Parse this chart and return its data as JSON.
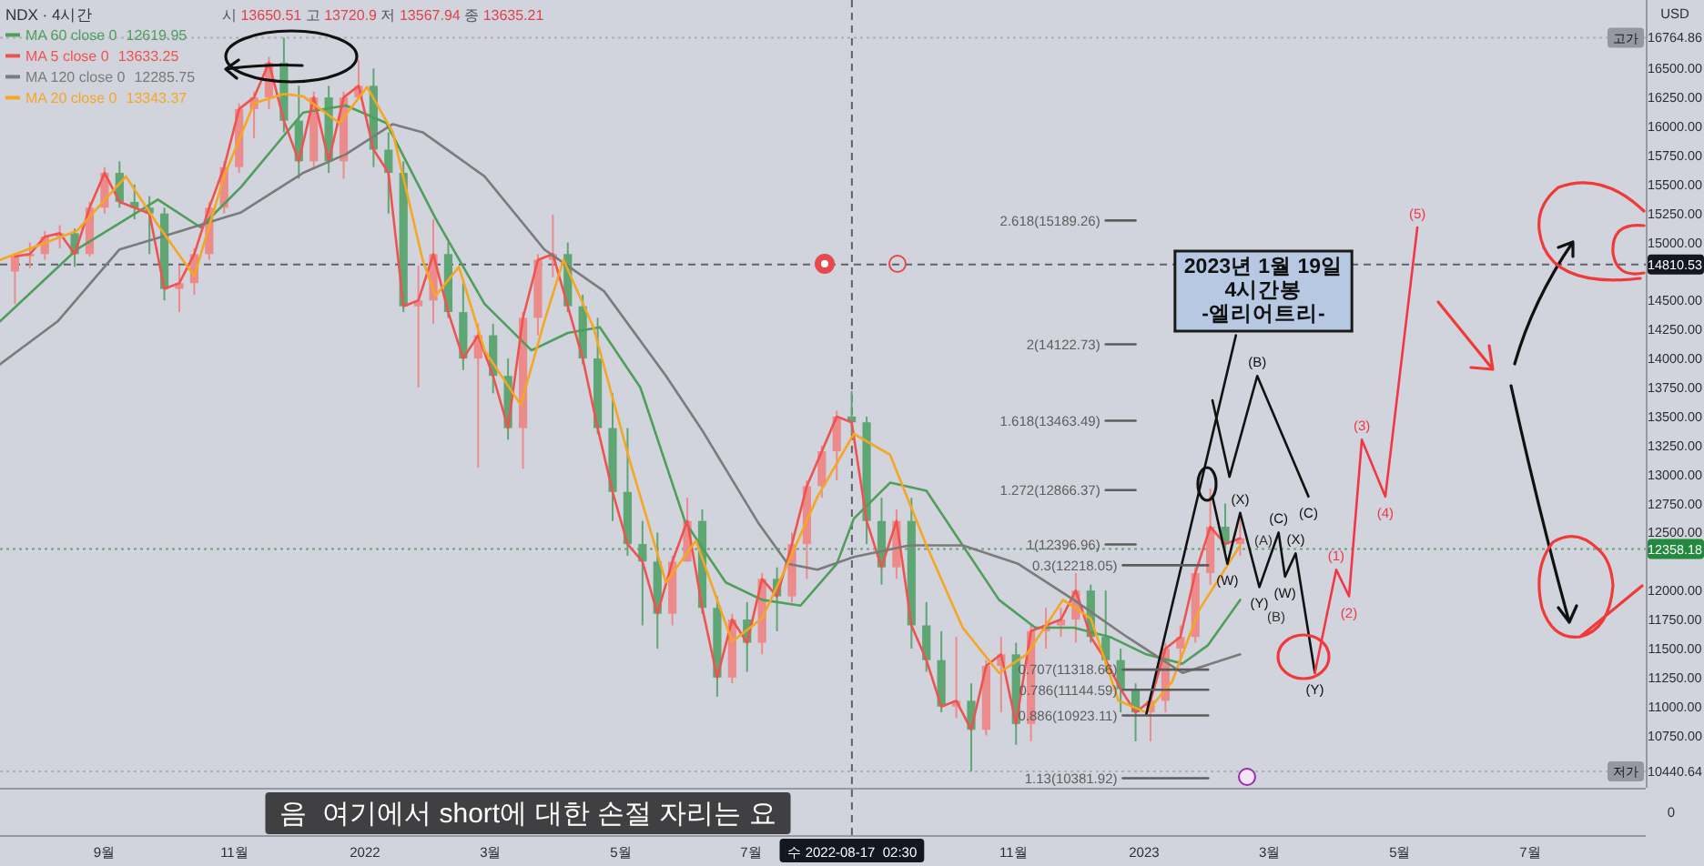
{
  "chart_data": {
    "type": "candlestick",
    "title": "2023년 1월 19일\n4시간봉\n-엘리어트리-",
    "subtitle": "NDX · 4시간",
    "ylabel": "USD",
    "legend": "top left",
    "xlim": [
      "2021-07-14",
      "2023-08-24"
    ],
    "xticks": [
      {
        "value": "2021-09-01",
        "label": "9월"
      },
      {
        "value": "2021-11-01",
        "label": "11월"
      },
      {
        "value": "2022-01-01",
        "label": "2022"
      },
      {
        "value": "2022-03-01",
        "label": "3월"
      },
      {
        "value": "2022-05-01",
        "label": "5월"
      },
      {
        "value": "2022-07-01",
        "label": "7월"
      },
      {
        "value": "2022-11-01",
        "label": "11월"
      },
      {
        "value": "2023-01-01",
        "label": "2023"
      },
      {
        "value": "2023-03-01",
        "label": "3월"
      },
      {
        "value": "2023-05-01",
        "label": "5월"
      },
      {
        "value": "2023-07-01",
        "label": "7월"
      }
    ],
    "ylim": [
      10300,
      17090
    ],
    "yticks": [
      {
        "value": 10440.64,
        "label": "10440.64"
      },
      {
        "value": 10750,
        "label": "10750.00"
      },
      {
        "value": 11000,
        "label": "11000.00"
      },
      {
        "value": 11250,
        "label": "11250.00"
      },
      {
        "value": 11500,
        "label": "11500.00"
      },
      {
        "value": 11750,
        "label": "11750.00"
      },
      {
        "value": 12000,
        "label": "12000.00"
      },
      {
        "value": 12500,
        "label": "12500.00"
      },
      {
        "value": 12750,
        "label": "12750.00"
      },
      {
        "value": 13000,
        "label": "13000.00"
      },
      {
        "value": 13250,
        "label": "13250.00"
      },
      {
        "value": 13500,
        "label": "13500.00"
      },
      {
        "value": 13750,
        "label": "13750.00"
      },
      {
        "value": 14000,
        "label": "14000.00"
      },
      {
        "value": 14250,
        "label": "14250.00"
      },
      {
        "value": 14500,
        "label": "14500.00"
      },
      {
        "value": 15000,
        "label": "15000.00"
      },
      {
        "value": 15250,
        "label": "15250.00"
      },
      {
        "value": 15500,
        "label": "15500.00"
      },
      {
        "value": 15750,
        "label": "15750.00"
      },
      {
        "value": 16000,
        "label": "16000.00"
      },
      {
        "value": 16250,
        "label": "16250.00"
      },
      {
        "value": 16500,
        "label": "16500.00"
      },
      {
        "value": 16764.86,
        "label": "16764.86"
      }
    ],
    "x": [
      "2021-07-21",
      "2021-07-28",
      "2021-08-04",
      "2021-08-11",
      "2021-08-18",
      "2021-08-25",
      "2021-09-01",
      "2021-09-08",
      "2021-09-15",
      "2021-09-22",
      "2021-09-29",
      "2021-10-06",
      "2021-10-13",
      "2021-10-20",
      "2021-10-27",
      "2021-11-03",
      "2021-11-10",
      "2021-11-17",
      "2021-11-24",
      "2021-12-01",
      "2021-12-08",
      "2021-12-15",
      "2021-12-22",
      "2021-12-29",
      "2022-01-05",
      "2022-01-12",
      "2022-01-19",
      "2022-01-26",
      "2022-02-02",
      "2022-02-09",
      "2022-02-16",
      "2022-02-23",
      "2022-03-02",
      "2022-03-09",
      "2022-03-16",
      "2022-03-23",
      "2022-03-30",
      "2022-04-06",
      "2022-04-13",
      "2022-04-20",
      "2022-04-27",
      "2022-05-04",
      "2022-05-11",
      "2022-05-18",
      "2022-05-25",
      "2022-06-01",
      "2022-06-08",
      "2022-06-15",
      "2022-06-22",
      "2022-06-29",
      "2022-07-06",
      "2022-07-13",
      "2022-07-20",
      "2022-07-27",
      "2022-08-03",
      "2022-08-10",
      "2022-08-17",
      "2022-08-24",
      "2022-08-31",
      "2022-09-07",
      "2022-09-14",
      "2022-09-21",
      "2022-09-28",
      "2022-10-05",
      "2022-10-12",
      "2022-10-19",
      "2022-10-26",
      "2022-11-02",
      "2022-11-09",
      "2022-11-16",
      "2022-11-23",
      "2022-11-30",
      "2022-12-07",
      "2022-12-14",
      "2022-12-21",
      "2022-12-28",
      "2023-01-04",
      "2023-01-11",
      "2023-01-18",
      "2023-01-25",
      "2023-02-01",
      "2023-02-08",
      "2023-02-15"
    ],
    "ohlc": [
      [
        14750,
        14900,
        14470,
        14880
      ],
      [
        14880,
        15000,
        14780,
        14900
      ],
      [
        14900,
        15100,
        14850,
        15050
      ],
      [
        15050,
        15150,
        14950,
        15080
      ],
      [
        15080,
        15120,
        14790,
        14900
      ],
      [
        14900,
        15350,
        14880,
        15300
      ],
      [
        15300,
        15650,
        15250,
        15600
      ],
      [
        15600,
        15700,
        15300,
        15350
      ],
      [
        15350,
        15500,
        15200,
        15300
      ],
      [
        15300,
        15400,
        14900,
        15250
      ],
      [
        15250,
        15300,
        14500,
        14600
      ],
      [
        14600,
        14800,
        14400,
        14650
      ],
      [
        14650,
        14950,
        14550,
        14900
      ],
      [
        14900,
        15350,
        14850,
        15300
      ],
      [
        15300,
        15700,
        15250,
        15650
      ],
      [
        15650,
        16200,
        15600,
        16150
      ],
      [
        16150,
        16300,
        15900,
        16250
      ],
      [
        16250,
        16600,
        16150,
        16550
      ],
      [
        16550,
        16764.86,
        15950,
        16050
      ],
      [
        16050,
        16350,
        15550,
        15700
      ],
      [
        15700,
        16300,
        15650,
        16250
      ],
      [
        16250,
        16350,
        15600,
        15700
      ],
      [
        15700,
        16300,
        15550,
        16250
      ],
      [
        16250,
        16575,
        16250,
        16350
      ],
      [
        16350,
        16500,
        15650,
        15800
      ],
      [
        15800,
        15950,
        15250,
        15600
      ],
      [
        15600,
        15700,
        14400,
        14450
      ],
      [
        14450,
        14800,
        13750,
        14500
      ],
      [
        14500,
        15200,
        14300,
        14900
      ],
      [
        14900,
        15000,
        14350,
        14400
      ],
      [
        14400,
        14650,
        13900,
        14000
      ],
      [
        14000,
        14300,
        13060,
        14200
      ],
      [
        14200,
        14300,
        13700,
        13850
      ],
      [
        13850,
        14000,
        13300,
        13400
      ],
      [
        13400,
        14400,
        13050,
        14350
      ],
      [
        14350,
        14900,
        14200,
        14850
      ],
      [
        14850,
        15240,
        14700,
        14900
      ],
      [
        14900,
        15000,
        14400,
        14450
      ],
      [
        14450,
        14550,
        13950,
        14000
      ],
      [
        14000,
        14350,
        13350,
        13400
      ],
      [
        13400,
        13700,
        12600,
        12850
      ],
      [
        12850,
        13400,
        12300,
        12400
      ],
      [
        12400,
        12600,
        11700,
        12250
      ],
      [
        12250,
        12500,
        11500,
        11800
      ],
      [
        11800,
        12300,
        11700,
        12250
      ],
      [
        12250,
        12800,
        12250,
        12600
      ],
      [
        12600,
        12700,
        11800,
        11850
      ],
      [
        11850,
        11950,
        11085,
        11250
      ],
      [
        11250,
        11800,
        11200,
        11750
      ],
      [
        11750,
        11900,
        11300,
        11550
      ],
      [
        11550,
        12150,
        11450,
        12100
      ],
      [
        12100,
        12200,
        11650,
        11950
      ],
      [
        11950,
        12500,
        11900,
        12400
      ],
      [
        12400,
        12950,
        12100,
        12900
      ],
      [
        12900,
        13250,
        12800,
        13200
      ],
      [
        13200,
        13550,
        12950,
        13500
      ],
      [
        13500,
        13720.9,
        13350,
        13450
      ],
      [
        13450,
        13500,
        12400,
        12600
      ],
      [
        12600,
        12800,
        12050,
        12200
      ],
      [
        12200,
        12700,
        12100,
        12600
      ],
      [
        12600,
        12800,
        11500,
        11700
      ],
      [
        11700,
        11900,
        11300,
        11400
      ],
      [
        11400,
        11650,
        10950,
        11000
      ],
      [
        11000,
        11600,
        10900,
        11050
      ],
      [
        11050,
        11200,
        10440.64,
        10800
      ],
      [
        10800,
        11400,
        10750,
        11350
      ],
      [
        11350,
        11600,
        10950,
        11450
      ],
      [
        11450,
        11550,
        10670,
        10850
      ],
      [
        10850,
        11700,
        10700,
        11650
      ],
      [
        11650,
        11850,
        11500,
        11700
      ],
      [
        11700,
        11850,
        11600,
        11750
      ],
      [
        11750,
        12150,
        11550,
        12000
      ],
      [
        12000,
        12050,
        11550,
        11600
      ],
      [
        11600,
        12000,
        11300,
        11400
      ],
      [
        11400,
        11500,
        10950,
        11150
      ],
      [
        11150,
        11200,
        10700,
        10950
      ],
      [
        10950,
        11100,
        10700,
        11050
      ],
      [
        11050,
        11550,
        10950,
        11500
      ],
      [
        11500,
        11700,
        11350,
        11600
      ],
      [
        11600,
        12200,
        11550,
        12150
      ],
      [
        12150,
        12880,
        12050,
        12550
      ],
      [
        12550,
        12750,
        12300,
        12400
      ],
      [
        12400,
        12650,
        12300,
        12450
      ]
    ],
    "colors": [
      "#ec8b8b",
      "#ec8b8b",
      "#ec8b8b",
      "#ec8b8b",
      "#5ea674",
      "#ec8b8b",
      "#ec8b8b",
      "#5ea674",
      "#5ea674",
      "#5ea674",
      "#5ea674",
      "#ec8b8b",
      "#ec8b8b",
      "#ec8b8b",
      "#ec8b8b",
      "#ec8b8b",
      "#ec8b8b",
      "#ec8b8b",
      "#5ea674",
      "#5ea674",
      "#ec8b8b",
      "#5ea674",
      "#ec8b8b",
      "#ec8b8b",
      "#5ea674",
      "#5ea674",
      "#5ea674",
      "#ec8b8b",
      "#ec8b8b",
      "#5ea674",
      "#5ea674",
      "#ec8b8b",
      "#5ea674",
      "#5ea674",
      "#ec8b8b",
      "#ec8b8b",
      "#ec8b8b",
      "#5ea674",
      "#5ea674",
      "#5ea674",
      "#5ea674",
      "#5ea674",
      "#5ea674",
      "#5ea674",
      "#ec8b8b",
      "#ec8b8b",
      "#5ea674",
      "#5ea674",
      "#ec8b8b",
      "#5ea674",
      "#ec8b8b",
      "#5ea674",
      "#ec8b8b",
      "#ec8b8b",
      "#ec8b8b",
      "#ec8b8b",
      "#5ea674",
      "#5ea674",
      "#5ea674",
      "#ec8b8b",
      "#5ea674",
      "#5ea674",
      "#5ea674",
      "#ec8b8b",
      "#5ea674",
      "#ec8b8b",
      "#ec8b8b",
      "#5ea674",
      "#ec8b8b",
      "#ec8b8b",
      "#ec8b8b",
      "#ec8b8b",
      "#5ea674",
      "#5ea674",
      "#5ea674",
      "#5ea674",
      "#ec8b8b",
      "#ec8b8b",
      "#ec8b8b",
      "#ec8b8b",
      "#ec8b8b",
      "#5ea674",
      "#ec8b8b"
    ],
    "series": [
      {
        "name": "MA 60 close 0 12619.95",
        "type": "line",
        "color": "#4f9f5a",
        "x": [
          "2021-07-14",
          "2021-08-19",
          "2021-09-26",
          "2021-10-16",
          "2021-11-04",
          "2021-12-03",
          "2021-12-23",
          "2022-01-11",
          "2022-02-03",
          "2022-02-26",
          "2022-03-20",
          "2022-04-06",
          "2022-04-21",
          "2022-05-10",
          "2022-05-31",
          "2022-06-19",
          "2022-07-06",
          "2022-07-24",
          "2022-08-10",
          "2022-08-18",
          "2022-09-04",
          "2022-09-21",
          "2022-10-08",
          "2022-10-25",
          "2022-11-11",
          "2022-11-29",
          "2022-12-16",
          "2023-01-02",
          "2023-01-19",
          "2023-01-31",
          "2023-02-15"
        ],
        "values": [
          14320,
          14940,
          15370,
          15130,
          15480,
          16120,
          16180,
          16030,
          15210,
          14470,
          14070,
          14220,
          14270,
          13750,
          12590,
          12070,
          11920,
          11870,
          12230,
          12620,
          12930,
          12860,
          12390,
          11920,
          11680,
          11680,
          11600,
          11450,
          11370,
          11530,
          11920
        ]
      },
      {
        "name": "MA 5 close 0 13633.25",
        "type": "line",
        "color": "#ef5350",
        "values": [
          14880,
          14900,
          15050,
          15080,
          14900,
          15300,
          15600,
          15350,
          15300,
          15250,
          14600,
          14650,
          14900,
          15300,
          15650,
          16150,
          16250,
          16550,
          16050,
          15700,
          16250,
          15700,
          16250,
          16350,
          15800,
          15600,
          14450,
          14500,
          14900,
          14400,
          14000,
          14200,
          13850,
          13400,
          14350,
          14850,
          14900,
          14450,
          14000,
          13400,
          12850,
          12400,
          12250,
          11800,
          12250,
          12600,
          11850,
          11250,
          11750,
          11550,
          12100,
          11950,
          12400,
          12900,
          13200,
          13500,
          13450,
          12600,
          12200,
          12600,
          11700,
          11400,
          11000,
          11050,
          10800,
          11350,
          11450,
          10850,
          11650,
          11700,
          11750,
          12000,
          11600,
          11400,
          11150,
          10950,
          11050,
          11500,
          11600,
          12150,
          12550,
          12400,
          12450
        ]
      },
      {
        "name": "MA 120 close 0 12285.75",
        "type": "line",
        "color": "#7b7b7b",
        "x": [
          "2021-07-14",
          "2021-08-10",
          "2021-09-08",
          "2021-10-07",
          "2021-11-04",
          "2021-12-03",
          "2021-12-23",
          "2022-01-14",
          "2022-01-28",
          "2022-02-26",
          "2022-03-26",
          "2022-04-23",
          "2022-05-22",
          "2022-06-08",
          "2022-07-04",
          "2022-07-18",
          "2022-08-01",
          "2022-08-18",
          "2022-09-13",
          "2022-10-08",
          "2022-11-03",
          "2022-11-29",
          "2022-12-24",
          "2023-01-19",
          "2023-02-15"
        ],
        "values": [
          13950,
          14320,
          14940,
          15100,
          15260,
          15600,
          15760,
          16020,
          15950,
          15570,
          14940,
          14580,
          13850,
          13380,
          12590,
          12230,
          12180,
          12290,
          12390,
          12390,
          12230,
          11920,
          11600,
          11290,
          11450
        ]
      },
      {
        "name": "MA 20 close 0 13343.37",
        "type": "line",
        "color": "#f5a623",
        "x": [
          "2021-07-14",
          "2021-08-19",
          "2021-09-11",
          "2021-09-26",
          "2021-10-13",
          "2021-10-27",
          "2021-11-10",
          "2021-11-24",
          "2021-12-03",
          "2021-12-20",
          "2022-01-02",
          "2022-01-14",
          "2022-01-28",
          "2022-02-03",
          "2022-02-14",
          "2022-02-26",
          "2022-03-15",
          "2022-03-26",
          "2022-04-04",
          "2022-04-18",
          "2022-05-05",
          "2022-05-22",
          "2022-06-05",
          "2022-06-22",
          "2022-07-06",
          "2022-07-18",
          "2022-08-01",
          "2022-08-18",
          "2022-09-04",
          "2022-09-21",
          "2022-10-08",
          "2022-10-25",
          "2022-11-07",
          "2022-11-24",
          "2022-12-07",
          "2022-12-20",
          "2023-01-02",
          "2023-01-14",
          "2023-01-27",
          "2023-02-15"
        ],
        "values": [
          14850,
          15100,
          15570,
          15150,
          14710,
          15570,
          16200,
          16280,
          16260,
          16030,
          16340,
          15950,
          14850,
          14540,
          14790,
          14070,
          13600,
          14320,
          14850,
          14270,
          13120,
          12070,
          12430,
          11560,
          11760,
          12230,
          12810,
          13350,
          13170,
          12390,
          11680,
          11290,
          11450,
          11920,
          11760,
          11050,
          10950,
          11210,
          11840,
          12390
        ]
      },
      {
        "type": "line",
        "color": "#111111",
        "x": [
          "2023-01-02",
          "2023-02-13"
        ],
        "values": [
          10930,
          14200
        ]
      },
      {
        "type": "line",
        "color": "#111111",
        "x": [
          "2023-02-02",
          "2023-02-10",
          "2023-02-23",
          "2023-03-19"
        ],
        "values": [
          13640,
          12980,
          13850,
          12810
        ]
      },
      {
        "type": "line",
        "color": "#111111",
        "x": [
          "2023-02-02",
          "2023-02-09",
          "2023-02-15",
          "2023-02-24",
          "2023-03-05",
          "2023-03-08",
          "2023-03-13",
          "2023-03-22"
        ],
        "values": [
          12810,
          12230,
          12670,
          12030,
          12500,
          12120,
          12320,
          11290
        ]
      },
      {
        "type": "line",
        "color": "#f23645",
        "x": [
          "2023-03-22",
          "2023-04-01",
          "2023-04-07",
          "2023-04-13",
          "2023-04-24",
          "2023-05-09"
        ],
        "values": [
          11290,
          12180,
          11950,
          13300,
          12810,
          15130
        ]
      },
      {
        "type": "line",
        "color": "#5d5d5d",
        "x": [
          "2022-12-14",
          "2022-12-28"
        ],
        "values": [
          15189.26,
          15189.26
        ]
      },
      {
        "type": "line",
        "color": "#5d5d5d",
        "x": [
          "2022-12-14",
          "2022-12-28"
        ],
        "values": [
          14122.73,
          14122.73
        ]
      },
      {
        "type": "line",
        "color": "#5d5d5d",
        "x": [
          "2022-12-14",
          "2022-12-28"
        ],
        "values": [
          13463.49,
          13463.49
        ]
      },
      {
        "type": "line",
        "color": "#5d5d5d",
        "x": [
          "2022-12-14",
          "2022-12-28"
        ],
        "values": [
          12866.37,
          12866.37
        ]
      },
      {
        "type": "line",
        "color": "#5d5d5d",
        "x": [
          "2022-12-14",
          "2022-12-28"
        ],
        "values": [
          12396.96,
          12396.96
        ]
      },
      {
        "type": "line",
        "color": "#5d5d5d",
        "x": [
          "2022-12-22",
          "2023-01-31"
        ],
        "values": [
          12218.05,
          12218.05
        ]
      },
      {
        "type": "line",
        "color": "#5d5d5d",
        "x": [
          "2022-12-22",
          "2023-01-31"
        ],
        "values": [
          11318.66,
          11318.66
        ]
      },
      {
        "type": "line",
        "color": "#5d5d5d",
        "x": [
          "2022-12-22",
          "2023-01-31"
        ],
        "values": [
          11144.59,
          11144.59
        ]
      },
      {
        "type": "line",
        "color": "#5d5d5d",
        "x": [
          "2022-12-22",
          "2023-01-31"
        ],
        "values": [
          10923.11,
          10923.11
        ]
      },
      {
        "type": "line",
        "color": "#5d5d5d",
        "x": [
          "2022-12-22",
          "2023-01-31"
        ],
        "values": [
          10381.92,
          10381.92
        ]
      }
    ],
    "ref_lines": [
      {
        "axis": "y",
        "value": 16764.86,
        "label": "고가",
        "color": "#9598a1",
        "line_style": "dotted"
      },
      {
        "axis": "y",
        "value": 10440.64,
        "label": "저가",
        "color": "#9598a1",
        "line_style": "dotted"
      },
      {
        "axis": "y",
        "value": 14810.53,
        "label": "14810.53",
        "color": "#131722",
        "line_style": "dashed"
      },
      {
        "axis": "y",
        "value": 12358.18,
        "label": "12358.18",
        "color": "#22893f",
        "line_style": "dotted"
      },
      {
        "axis": "x",
        "value": "2022-08-17T02:30",
        "label": "수 2022-08-17  02:30",
        "color": "#131722",
        "line_style": "dashed"
      }
    ],
    "annotations": [
      "시 13650.51 고 13720.9 저 13567.94 종 13635.21",
      "음  여기에서 short에 대한 손절 자리는 요",
      "0",
      "(A)",
      "(B)",
      {
        "text": "2.618(15189.26)",
        "x": "2022-12-14",
        "y": 15189.26
      },
      {
        "text": "2(14122.73)",
        "x": "2022-12-14",
        "y": 14122.73
      },
      {
        "text": "1.618(13463.49)",
        "x": "2022-12-14",
        "y": 13463.49
      },
      {
        "text": "1.272(12866.37)",
        "x": "2022-12-14",
        "y": 12866.37
      },
      {
        "text": "1(12396.96)",
        "x": "2022-12-14",
        "y": 12396.96
      },
      {
        "text": "0.3(12218.05)",
        "x": "2022-12-22",
        "y": 12218.05
      },
      {
        "text": "0.707(11318.66)",
        "x": "2022-12-22",
        "y": 11318.66
      },
      {
        "text": "0.786(11144.59)",
        "x": "2022-12-22",
        "y": 11144.59
      },
      {
        "text": "0.886(10923.11)",
        "x": "2022-12-22",
        "y": 10923.11
      },
      {
        "text": "1.13(10381.92)",
        "x": "2022-12-22",
        "y": 10381.92
      },
      {
        "text": "(B)",
        "x": "2023-02-23",
        "y": 13850
      },
      {
        "text": "(C)",
        "x": "2023-03-19",
        "y": 12810
      },
      {
        "text": "(W)",
        "x": "2023-02-09",
        "y": 12230
      },
      {
        "text": "(X)",
        "x": "2023-02-15",
        "y": 12670
      },
      {
        "text": "(Y)",
        "x": "2023-02-24",
        "y": 12030
      },
      {
        "text": "(C)",
        "x": "2023-03-05",
        "y": 12500
      },
      {
        "text": "(W)",
        "x": "2023-03-08",
        "y": 12120
      },
      {
        "text": "(X)",
        "x": "2023-03-13",
        "y": 12320
      },
      {
        "text": "(Y)",
        "x": "2023-03-22",
        "y": 11290
      },
      {
        "text": "(1)",
        "x": "2023-04-01",
        "y": 12180
      },
      {
        "text": "(2)",
        "x": "2023-04-07",
        "y": 11950
      },
      {
        "text": "(3)",
        "x": "2023-04-13",
        "y": 13300
      },
      {
        "text": "(4)",
        "x": "2023-04-24",
        "y": 12810
      },
      {
        "text": "(5)",
        "x": "2023-05-09",
        "y": 15130
      }
    ]
  }
}
